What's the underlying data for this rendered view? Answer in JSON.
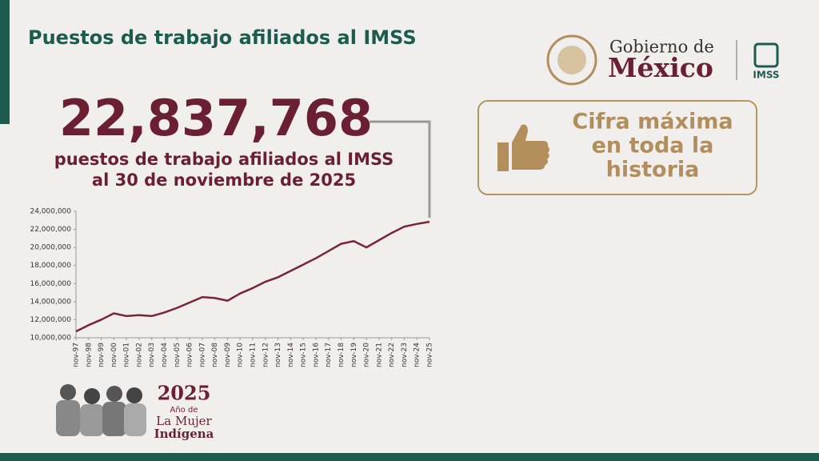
{
  "header": {
    "title": "Puestos de trabajo afiliados al IMSS"
  },
  "headline": {
    "figure": "22,837,768",
    "line1": "puestos de trabajo afiliados al IMSS",
    "line2": "al 30 de noviembre de 2025"
  },
  "badge": {
    "line1": "Cifra máxima",
    "line2": "en toda la",
    "line3": "historia"
  },
  "logos": {
    "gobierno": "Gobierno de",
    "mexico": "México",
    "imss": "IMSS"
  },
  "footer_badge": {
    "year": "2025",
    "line1": "Año de",
    "line2": "La Mujer",
    "line3": "Indígena"
  },
  "chart_data": {
    "type": "line",
    "categories": [
      "nov-97",
      "nov-98",
      "nov-99",
      "nov-00",
      "nov-01",
      "nov-02",
      "nov-03",
      "nov-04",
      "nov-05",
      "nov-06",
      "nov-07",
      "nov-08",
      "nov-09",
      "nov-10",
      "nov-11",
      "nov-12",
      "nov-13",
      "nov-14",
      "nov-15",
      "nov-16",
      "nov-17",
      "nov-18",
      "nov-19",
      "nov-20",
      "nov-21",
      "nov-22",
      "nov-23",
      "nov-24",
      "nov-25"
    ],
    "series": [
      {
        "name": "Puestos de trabajo afiliados al IMSS",
        "color": "#7a2438",
        "values": [
          10700000,
          11400000,
          12000000,
          12700000,
          12400000,
          12500000,
          12400000,
          12800000,
          13300000,
          13900000,
          14500000,
          14400000,
          14100000,
          14900000,
          15500000,
          16200000,
          16700000,
          17400000,
          18100000,
          18800000,
          19600000,
          20400000,
          20700000,
          20000000,
          20800000,
          21600000,
          22300000,
          22600000,
          22837768
        ]
      }
    ],
    "ylim": [
      10000000,
      24000000
    ],
    "yticks": [
      {
        "value": 10000000,
        "label": "10,000,000"
      },
      {
        "value": 12000000,
        "label": "12,000,000"
      },
      {
        "value": 14000000,
        "label": "14,000,000"
      },
      {
        "value": 16000000,
        "label": "16,000,000"
      },
      {
        "value": 18000000,
        "label": "18,000,000"
      },
      {
        "value": 20000000,
        "label": "20,000,000"
      },
      {
        "value": 22000000,
        "label": "22,000,000"
      },
      {
        "value": 24000000,
        "label": "24,000,000"
      }
    ],
    "grid": false
  }
}
